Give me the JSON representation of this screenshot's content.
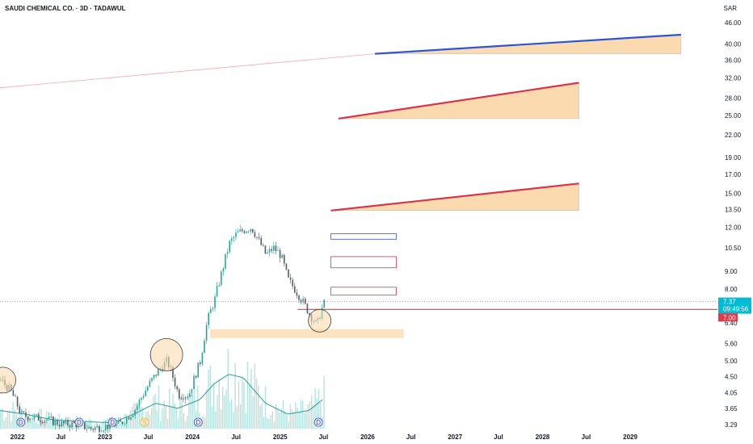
{
  "header": {
    "symbol_title": "SAUDI CHEMICAL CO. · 3D · TADAWUL",
    "currency": "SAR"
  },
  "colors": {
    "up": "#26a69a",
    "down": "#545b66",
    "price_label": "#00bcd4",
    "support_line": "#e53945",
    "zone_fill": "#fbd7a8",
    "blue_line": "#2f55d4",
    "red_line": "#d9344a",
    "volume": "#a5dbd5",
    "volume_ma": "#2d9c8f"
  },
  "price_labels": {
    "last_price": "7.37",
    "countdown": "09:49:56",
    "support_price": "7.00"
  },
  "event_markers": [
    "D",
    "D",
    "D",
    "S",
    "D",
    "D"
  ],
  "chart_data": {
    "type": "candlestick",
    "title": "SAUDI CHEMICAL CO. · 3D · TADAWUL",
    "y_scale": "log",
    "ylim": [
      3.2,
      47
    ],
    "yticks": [
      "46.00",
      "40.00",
      "36.00",
      "32.00",
      "28.00",
      "25.00",
      "22.00",
      "19.00",
      "17.00",
      "15.00",
      "13.50",
      "12.00",
      "10.50",
      "9.00",
      "8.00",
      "6.40",
      "5.60",
      "5.00",
      "4.50",
      "4.05",
      "3.65",
      "3.29"
    ],
    "xticks": [
      "2022",
      "Jul",
      "2023",
      "Jul",
      "2024",
      "Jul",
      "2025",
      "Jul",
      "2026",
      "Jul",
      "2027",
      "Jul",
      "2028",
      "Jul",
      "2029"
    ],
    "price_path": [
      [
        "2021-10-20",
        4.4
      ],
      [
        "2021-12-01",
        4.1
      ],
      [
        "2022-01-15",
        3.5
      ],
      [
        "2022-03-01",
        3.45
      ],
      [
        "2022-05-01",
        3.4
      ],
      [
        "2022-07-01",
        3.3
      ],
      [
        "2022-09-01",
        3.3
      ],
      [
        "2022-11-01",
        3.2
      ],
      [
        "2023-01-01",
        3.25
      ],
      [
        "2023-03-01",
        3.3
      ],
      [
        "2023-05-01",
        3.6
      ],
      [
        "2023-06-15",
        4.1
      ],
      [
        "2023-08-01",
        4.6
      ],
      [
        "2023-09-15",
        5.0
      ],
      [
        "2023-11-01",
        4.0
      ],
      [
        "2023-12-15",
        4.0
      ],
      [
        "2024-02-01",
        5.0
      ],
      [
        "2024-03-01",
        6.5
      ],
      [
        "2024-04-01",
        7.5
      ],
      [
        "2024-05-01",
        9.0
      ],
      [
        "2024-06-01",
        10.8
      ],
      [
        "2024-07-01",
        11.5
      ],
      [
        "2024-08-01",
        11.8
      ],
      [
        "2024-09-01",
        12.0
      ],
      [
        "2024-10-01",
        11.0
      ],
      [
        "2024-11-01",
        10.0
      ],
      [
        "2024-12-01",
        10.5
      ],
      [
        "2025-01-01",
        10.0
      ],
      [
        "2025-02-01",
        8.5
      ],
      [
        "2025-03-01",
        8.0
      ],
      [
        "2025-04-01",
        7.4
      ],
      [
        "2025-05-01",
        6.8
      ],
      [
        "2025-06-01",
        6.3
      ],
      [
        "2025-06-20",
        7.0
      ],
      [
        "2025-07-05",
        7.37
      ]
    ],
    "volume_ma_path": [
      [
        "2021-10-20",
        0.25
      ],
      [
        "2022-02-01",
        0.2
      ],
      [
        "2022-06-01",
        0.12
      ],
      [
        "2022-10-01",
        0.1
      ],
      [
        "2023-02-01",
        0.08
      ],
      [
        "2023-05-01",
        0.2
      ],
      [
        "2023-08-01",
        0.35
      ],
      [
        "2023-11-01",
        0.28
      ],
      [
        "2024-02-01",
        0.4
      ],
      [
        "2024-04-01",
        0.62
      ],
      [
        "2024-06-01",
        0.75
      ],
      [
        "2024-08-01",
        0.7
      ],
      [
        "2024-11-01",
        0.35
      ],
      [
        "2025-02-01",
        0.2
      ],
      [
        "2025-05-01",
        0.25
      ],
      [
        "2025-07-05",
        0.42
      ]
    ],
    "horizontal_line": {
      "price": 7.0,
      "from": "2025-03-15"
    },
    "annotations": {
      "rising_lines": [
        {
          "color": "blue",
          "from": [
            "2026-02-01",
            37.5
          ],
          "to": [
            "2029-08-01",
            42.5
          ]
        },
        {
          "color": "red",
          "from": [
            "2025-09-01",
            24.5
          ],
          "to": [
            "2028-06-01",
            31.0
          ]
        },
        {
          "color": "red",
          "from": [
            "2025-08-01",
            13.4
          ],
          "to": [
            "2028-06-01",
            16.0
          ]
        }
      ],
      "faint_line": {
        "from": [
          "2021-10-20",
          30.0
        ],
        "to": [
          "2026-02-01",
          37.5
        ]
      },
      "outlined_boxes": [
        {
          "color": "blue",
          "x": [
            "2025-08-01",
            "2026-05-01"
          ],
          "price": [
            11.1,
            11.5
          ]
        },
        {
          "color": "red",
          "x": [
            "2025-08-01",
            "2026-05-01"
          ],
          "price": [
            9.2,
            9.9
          ]
        },
        {
          "color": "red",
          "x": [
            "2025-08-01",
            "2026-05-01"
          ],
          "price": [
            7.7,
            8.1
          ]
        }
      ],
      "zone": {
        "x": [
          "2024-03-15",
          "2026-06-01"
        ],
        "price": [
          5.8,
          6.15
        ]
      },
      "circles": [
        {
          "at": [
            "2021-11-01",
            4.4
          ]
        },
        {
          "at": [
            "2023-09-15",
            5.2
          ]
        },
        {
          "at": [
            "2025-06-15",
            6.5
          ]
        }
      ]
    }
  }
}
